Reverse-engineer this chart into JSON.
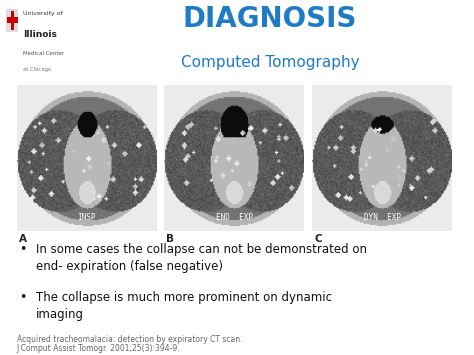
{
  "title": "DIAGNOSIS",
  "subtitle": "Computed Tomography",
  "title_color": "#1E7BC4",
  "subtitle_color": "#1E7BC4",
  "title_fontsize": 20,
  "subtitle_fontsize": 11,
  "background_color": "#ffffff",
  "bullet_points": [
    "In some cases the collapse can not be demonstrated on\nend- expiration (false negative)",
    "The collapse is much more prominent on dynamic\nimaging"
  ],
  "bullet_fontsize": 8.5,
  "bullet_color": "#111111",
  "image_labels": [
    "A",
    "B",
    "C"
  ],
  "image_sublabels": [
    "INSP",
    "END  EXP",
    "DYN  EXP"
  ],
  "citation_line1": "Acquired tracheomalacia: detection by expiratory CT scan.",
  "citation_line2": "J Comput Assist Tomogr. 2001;25(3):394-9.",
  "citation_fontsize": 5.5,
  "logo_text_line1": "University of",
  "logo_text_line2": "Illinois",
  "logo_text_line3": "Medical Center",
  "logo_text_line4": "at Chicago"
}
